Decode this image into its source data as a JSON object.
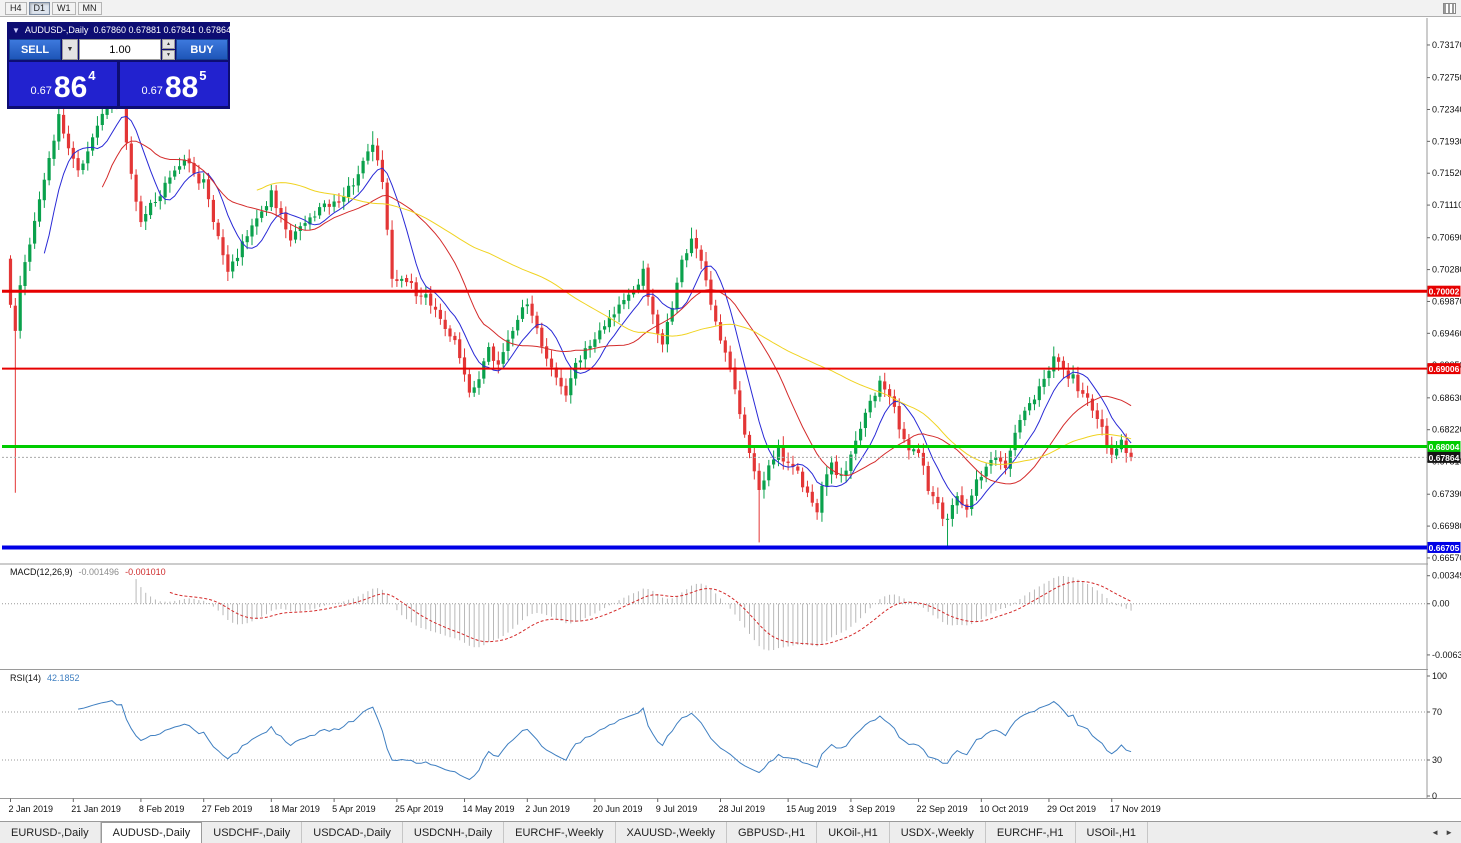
{
  "toolbar": {
    "timeframes": [
      {
        "label": "H4",
        "active": false
      },
      {
        "label": "D1",
        "active": true
      },
      {
        "label": "W1",
        "active": false
      },
      {
        "label": "MN",
        "active": false
      }
    ]
  },
  "trade_panel": {
    "title": "AUDUSD-,Daily",
    "ohlc": "0.67860 0.67881 0.67841 0.67864",
    "sell_label": "SELL",
    "buy_label": "BUY",
    "volume": "1.00",
    "sell_price": {
      "prefix": "0.67",
      "big": "86",
      "sup": "4"
    },
    "buy_price": {
      "prefix": "0.67",
      "big": "88",
      "sup": "5"
    }
  },
  "chart_data": {
    "type": "candlestick",
    "symbol": "AUDUSD-",
    "timeframe": "Daily",
    "candle_count": 233,
    "first_open": 0.7042,
    "current_price": {
      "value": 0.67864,
      "label": "0.67864"
    },
    "price_axis": {
      "ticks": [
        0.7317,
        0.7275,
        0.7234,
        0.7193,
        0.7152,
        0.7111,
        0.7069,
        0.7028,
        0.6987,
        0.6946,
        0.6905,
        0.6863,
        0.6822,
        0.6781,
        0.6739,
        0.6698,
        0.6657
      ]
    },
    "x_labels": [
      [
        "2 Jan 2019",
        0
      ],
      [
        "21 Jan 2019",
        13
      ],
      [
        "8 Feb 2019",
        27
      ],
      [
        "27 Feb 2019",
        40
      ],
      [
        "18 Mar 2019",
        54
      ],
      [
        "5 Apr 2019",
        67
      ],
      [
        "25 Apr 2019",
        80
      ],
      [
        "14 May 2019",
        94
      ],
      [
        "2 Jun 2019",
        107
      ],
      [
        "20 Jun 2019",
        121
      ],
      [
        "9 Jul 2019",
        134
      ],
      [
        "28 Jul 2019",
        147
      ],
      [
        "15 Aug 2019",
        161
      ],
      [
        "3 Sep 2019",
        174
      ],
      [
        "22 Sep 2019",
        188
      ],
      [
        "10 Oct 2019",
        201
      ],
      [
        "29 Oct 2019",
        215
      ],
      [
        "17 Nov 2019",
        228
      ]
    ],
    "close_anchors": [
      [
        0,
        0.6985
      ],
      [
        1,
        0.6945
      ],
      [
        2,
        0.7005
      ],
      [
        4,
        0.706
      ],
      [
        6,
        0.712
      ],
      [
        8,
        0.7175
      ],
      [
        10,
        0.7225
      ],
      [
        12,
        0.7185
      ],
      [
        14,
        0.715
      ],
      [
        16,
        0.718
      ],
      [
        18,
        0.721
      ],
      [
        21,
        0.7255
      ],
      [
        23,
        0.7235
      ],
      [
        25,
        0.715
      ],
      [
        27,
        0.709
      ],
      [
        29,
        0.711
      ],
      [
        31,
        0.7125
      ],
      [
        34,
        0.716
      ],
      [
        36,
        0.7175
      ],
      [
        38,
        0.715
      ],
      [
        40,
        0.714
      ],
      [
        42,
        0.709
      ],
      [
        45,
        0.7025
      ],
      [
        47,
        0.7045
      ],
      [
        49,
        0.7075
      ],
      [
        52,
        0.7105
      ],
      [
        54,
        0.7125
      ],
      [
        56,
        0.7095
      ],
      [
        58,
        0.7065
      ],
      [
        60,
        0.708
      ],
      [
        63,
        0.71
      ],
      [
        66,
        0.711
      ],
      [
        69,
        0.7125
      ],
      [
        72,
        0.715
      ],
      [
        75,
        0.719
      ],
      [
        77,
        0.714
      ],
      [
        79,
        0.701
      ],
      [
        81,
        0.702
      ],
      [
        83,
        0.7005
      ],
      [
        85,
        0.6995
      ],
      [
        87,
        0.6985
      ],
      [
        89,
        0.6965
      ],
      [
        91,
        0.6945
      ],
      [
        93,
        0.692
      ],
      [
        95,
        0.6872
      ],
      [
        97,
        0.689
      ],
      [
        99,
        0.6925
      ],
      [
        101,
        0.6905
      ],
      [
        103,
        0.6935
      ],
      [
        105,
        0.6965
      ],
      [
        107,
        0.6985
      ],
      [
        109,
        0.695
      ],
      [
        111,
        0.6915
      ],
      [
        113,
        0.6888
      ],
      [
        115,
        0.6868
      ],
      [
        117,
        0.6905
      ],
      [
        119,
        0.6928
      ],
      [
        121,
        0.6942
      ],
      [
        123,
        0.6958
      ],
      [
        125,
        0.6975
      ],
      [
        127,
        0.6992
      ],
      [
        129,
        0.7
      ],
      [
        131,
        0.7025
      ],
      [
        133,
        0.6965
      ],
      [
        135,
        0.6928
      ],
      [
        137,
        0.6985
      ],
      [
        139,
        0.704
      ],
      [
        141,
        0.707
      ],
      [
        142,
        0.706
      ],
      [
        144,
        0.701
      ],
      [
        146,
        0.696
      ],
      [
        148,
        0.6915
      ],
      [
        150,
        0.6875
      ],
      [
        152,
        0.682
      ],
      [
        154,
        0.677
      ],
      [
        155,
        0.6742
      ],
      [
        157,
        0.6782
      ],
      [
        159,
        0.6795
      ],
      [
        161,
        0.678
      ],
      [
        163,
        0.6765
      ],
      [
        165,
        0.6742
      ],
      [
        167,
        0.6712
      ],
      [
        168,
        0.6745
      ],
      [
        170,
        0.6775
      ],
      [
        172,
        0.6762
      ],
      [
        174,
        0.6788
      ],
      [
        176,
        0.6822
      ],
      [
        178,
        0.6858
      ],
      [
        180,
        0.6882
      ],
      [
        182,
        0.6868
      ],
      [
        184,
        0.6822
      ],
      [
        186,
        0.6795
      ],
      [
        188,
        0.6792
      ],
      [
        190,
        0.6748
      ],
      [
        192,
        0.6722
      ],
      [
        194,
        0.6702
      ],
      [
        196,
        0.674
      ],
      [
        198,
        0.6724
      ],
      [
        200,
        0.6752
      ],
      [
        202,
        0.6772
      ],
      [
        204,
        0.6792
      ],
      [
        206,
        0.6772
      ],
      [
        208,
        0.6815
      ],
      [
        210,
        0.6848
      ],
      [
        212,
        0.6862
      ],
      [
        214,
        0.6885
      ],
      [
        216,
        0.6912
      ],
      [
        218,
        0.6898
      ],
      [
        220,
        0.6888
      ],
      [
        222,
        0.6868
      ],
      [
        224,
        0.6852
      ],
      [
        226,
        0.6822
      ],
      [
        228,
        0.6792
      ],
      [
        230,
        0.6808
      ],
      [
        231,
        0.6788
      ],
      [
        232,
        0.67864
      ]
    ],
    "special_wicks": {
      "highs": [
        [
          10,
          0.724
        ],
        [
          21,
          0.729
        ],
        [
          75,
          0.7206
        ],
        [
          141,
          0.7082
        ],
        [
          216,
          0.6929
        ]
      ],
      "lows": [
        [
          1,
          0.6741
        ],
        [
          155,
          0.6677
        ],
        [
          194,
          0.6672
        ]
      ]
    },
    "hlines": [
      {
        "price": 0.70002,
        "label": "0.70002",
        "color": "#e60000",
        "thickness": 3
      },
      {
        "price": 0.69006,
        "label": "0.69006",
        "color": "#e60000",
        "thickness": 2
      },
      {
        "price": 0.68004,
        "label": "0.68004",
        "color": "#00cc00",
        "thickness": 3
      },
      {
        "price": 0.66705,
        "label": "0.66705",
        "color": "#0000e6",
        "thickness": 4
      }
    ],
    "moving_averages": [
      {
        "name": "fast-ma",
        "period": 8,
        "color": "#2929d6"
      },
      {
        "name": "medium-ma",
        "period": 20,
        "color": "#d42b2b"
      },
      {
        "name": "slow-ma",
        "period": 52,
        "color": "#f0d321"
      }
    ],
    "indicators": {
      "macd": {
        "label": "MACD(12,26,9)",
        "value_main_text": "-0.001496",
        "value_signal_text": "-0.001010",
        "scale": [
          [
            0.00349,
            "0.00349"
          ],
          [
            0,
            "0.00"
          ],
          [
            -0.00637,
            "-0.00637"
          ]
        ],
        "range": [
          0.0042,
          -0.0075
        ]
      },
      "rsi": {
        "label": "RSI(14)",
        "value_text": "42.1852",
        "levels": [
          70,
          30
        ],
        "scale": [
          [
            100,
            "100"
          ],
          [
            70,
            "70"
          ],
          [
            30,
            "30"
          ],
          [
            0,
            "0"
          ]
        ]
      }
    }
  },
  "tabs": [
    {
      "label": "EURUSD-,Daily",
      "active": false
    },
    {
      "label": "AUDUSD-,Daily",
      "active": true
    },
    {
      "label": "USDCHF-,Daily",
      "active": false
    },
    {
      "label": "USDCAD-,Daily",
      "active": false
    },
    {
      "label": "USDCNH-,Daily",
      "active": false
    },
    {
      "label": "EURCHF-,Weekly",
      "active": false
    },
    {
      "label": "XAUUSD-,Weekly",
      "active": false
    },
    {
      "label": "GBPUSD-,H1",
      "active": false
    },
    {
      "label": "UKOil-,H1",
      "active": false
    },
    {
      "label": "USDX-,Weekly",
      "active": false
    },
    {
      "label": "EURCHF-,H1",
      "active": false
    },
    {
      "label": "USOil-,H1",
      "active": false
    }
  ],
  "tab_scroll": {
    "left": "◄",
    "right": "►"
  },
  "colors": {
    "candle_up": "#0aa14c",
    "candle_down": "#e33636",
    "macd_hist": "#b8b8b8",
    "macd_signal": "#d42b2b",
    "rsi_line": "#3f7fc1",
    "current_tag": "#151515"
  }
}
